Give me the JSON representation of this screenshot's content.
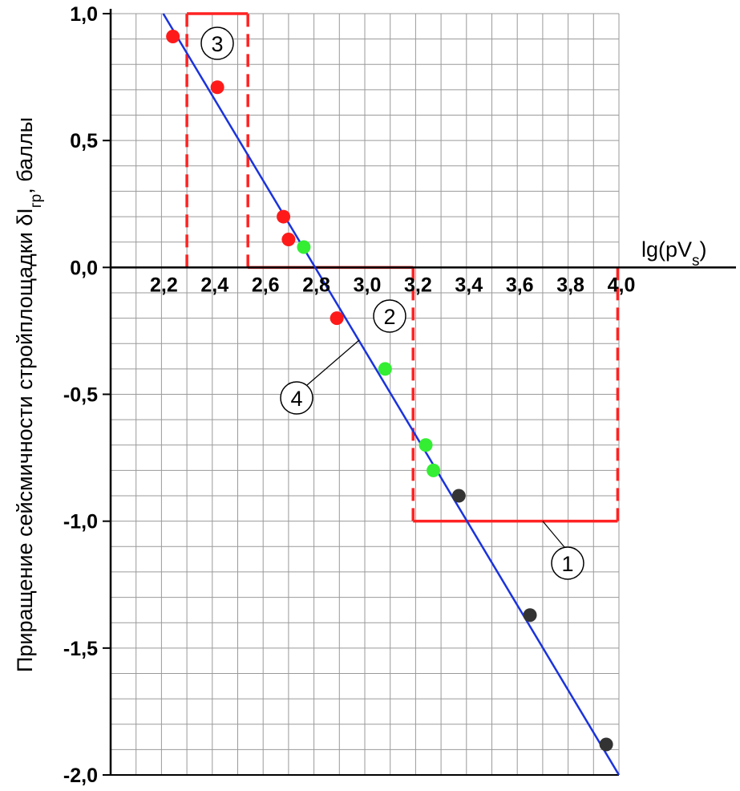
{
  "chart_data": {
    "type": "scatter",
    "title": "",
    "xlabel": "lg(pV",
    "xlabel_sub": "s",
    "xlabel_close": ")",
    "ylabel": "Приращение сейсмичности стройплощадки δI",
    "ylabel_sub": "гр",
    "ylabel_tail": ", баллы",
    "xlim": [
      2.0,
      4.0
    ],
    "ylim": [
      -2.0,
      1.0
    ],
    "x_ticks": [
      2.2,
      2.4,
      2.6,
      2.8,
      3.0,
      3.2,
      3.4,
      3.6,
      3.8,
      4.0
    ],
    "x_tick_labels": [
      "2,2",
      "2,4",
      "2,6",
      "2,8",
      "3,0",
      "3,2",
      "3,4",
      "3,6",
      "3,8",
      "4,0"
    ],
    "y_ticks": [
      1.0,
      0.5,
      0.0,
      -0.5,
      -1.0,
      -1.5,
      -2.0
    ],
    "y_tick_labels": [
      "1,0",
      "0,5",
      "0,0",
      "-0,5",
      "-1,0",
      "-1,5",
      "-2,0"
    ],
    "grid": true,
    "series": [
      {
        "color": "#ff1a1a",
        "points": [
          [
            2.245,
            0.91
          ],
          [
            2.42,
            0.71
          ],
          [
            2.68,
            0.2
          ],
          [
            2.7,
            0.11
          ],
          [
            2.89,
            -0.2
          ]
        ]
      },
      {
        "color": "#33ee33",
        "points": [
          [
            2.76,
            0.08
          ],
          [
            3.08,
            -0.4
          ],
          [
            3.24,
            -0.7
          ],
          [
            3.27,
            -0.8
          ]
        ]
      },
      {
        "color": "#333333",
        "points": [
          [
            3.37,
            -0.9
          ],
          [
            3.65,
            -1.37
          ],
          [
            3.95,
            -1.88
          ]
        ]
      }
    ],
    "trend_line": {
      "color": "#1a33dd",
      "x": [
        2.207,
        4.0
      ],
      "y": [
        1.0,
        -2.0
      ]
    },
    "zones": [
      {
        "label": "1",
        "color": "#ff2222",
        "x": [
          3.19,
          3.995
        ],
        "y": [
          -1.0,
          0.0
        ]
      },
      {
        "label": "2",
        "color": "#ff2222",
        "x": [
          2.54,
          3.19
        ],
        "y": [
          0.0,
          0.0
        ]
      },
      {
        "label": "3",
        "color": "#ff2222",
        "x": [
          2.3,
          2.54
        ],
        "y": [
          0.0,
          1.0
        ]
      }
    ],
    "line_label": "4"
  }
}
